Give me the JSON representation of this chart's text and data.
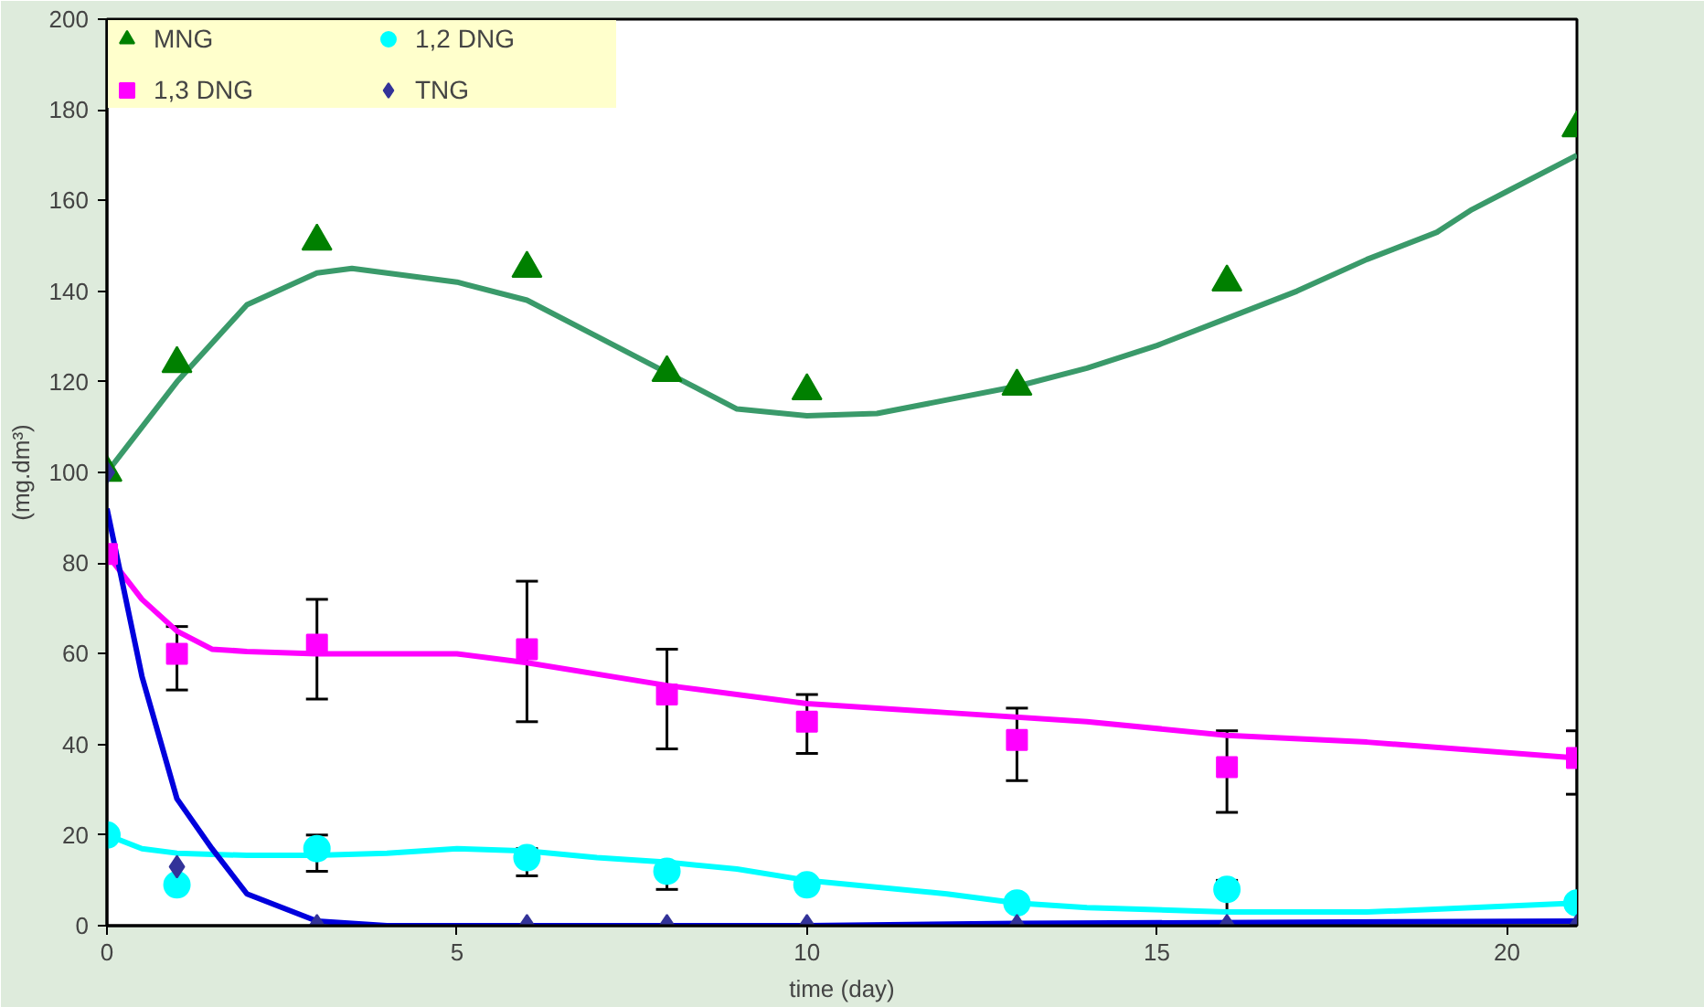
{
  "chart_data": {
    "type": "scatter",
    "xlabel": "time (day)",
    "ylabel": "(mg.dm³)",
    "xlim": [
      0,
      21
    ],
    "ylim": [
      0,
      200
    ],
    "xticks": [
      0,
      5,
      10,
      15,
      20
    ],
    "yticks": [
      0,
      20,
      40,
      60,
      80,
      100,
      120,
      140,
      160,
      180,
      200
    ],
    "grid": false,
    "legend": "top left",
    "series": [
      {
        "name": "MNG",
        "color": "#008000",
        "marker": "triangle",
        "x": [
          0,
          1,
          3,
          6,
          8,
          10,
          13,
          16,
          21
        ],
        "values": [
          100,
          124,
          151,
          145,
          122,
          118,
          119,
          142,
          176
        ]
      },
      {
        "name": "1,3 DNG",
        "color": "#ff00ff",
        "marker": "square",
        "x": [
          0,
          1,
          3,
          6,
          8,
          10,
          13,
          16,
          21
        ],
        "values": [
          82,
          60,
          62,
          61,
          51,
          45,
          41,
          35,
          37
        ],
        "errors": [
          null,
          [
            52,
            66
          ],
          [
            50,
            72
          ],
          [
            45,
            76
          ],
          [
            39,
            61
          ],
          [
            38,
            51
          ],
          [
            32,
            48
          ],
          [
            25,
            43
          ],
          [
            29,
            43
          ]
        ]
      },
      {
        "name": "1,2 DNG",
        "color": "#00ffff",
        "marker": "circle",
        "x": [
          0,
          1,
          3,
          6,
          8,
          10,
          13,
          16,
          21
        ],
        "values": [
          20,
          9,
          17,
          15,
          12,
          9,
          5,
          8,
          5
        ],
        "errors": [
          null,
          null,
          [
            12,
            20
          ],
          [
            11,
            17
          ],
          [
            8,
            12
          ],
          null,
          null,
          [
            3,
            10
          ],
          [
            4,
            6
          ]
        ]
      },
      {
        "name": "TNG",
        "color": "#333399",
        "marker": "diamond",
        "x": [
          0,
          1,
          3,
          6,
          8,
          10,
          13,
          16,
          21
        ],
        "values": [
          100,
          13,
          0,
          0,
          0,
          0,
          0,
          0,
          0
        ]
      },
      {
        "type": "line",
        "color": "#3a9a6a",
        "marker": "none",
        "x": [
          0,
          1,
          2,
          3,
          3.5,
          5,
          6,
          7,
          8,
          9,
          10,
          11,
          12,
          13,
          14,
          15,
          16,
          17,
          18,
          19,
          19.5,
          20,
          21
        ],
        "values": [
          100,
          120,
          137,
          144,
          145,
          142,
          138,
          130,
          122,
          114,
          112.5,
          113,
          116,
          119,
          123,
          128,
          134,
          140,
          147,
          153,
          158,
          162,
          170
        ]
      },
      {
        "type": "line",
        "color": "#ff00ff",
        "marker": "none",
        "x": [
          0,
          0.5,
          1,
          1.5,
          2,
          3,
          5,
          6,
          8,
          10,
          12,
          14,
          16,
          18,
          21
        ],
        "values": [
          82,
          72,
          65,
          61,
          60.5,
          60,
          60,
          58,
          53,
          49,
          47,
          45,
          42,
          40.5,
          37
        ]
      },
      {
        "type": "line",
        "color": "#00ffff",
        "marker": "none",
        "x": [
          0,
          0.5,
          1,
          2,
          3,
          4,
          5,
          6,
          7,
          8,
          9,
          10,
          12,
          13,
          14,
          16,
          18,
          21
        ],
        "values": [
          20,
          17,
          16,
          15.5,
          15.5,
          16,
          17,
          16.5,
          15,
          14,
          12.5,
          10,
          7,
          5,
          4,
          3,
          3,
          5
        ]
      },
      {
        "type": "line",
        "color": "#0000dd",
        "marker": "none",
        "x": [
          0,
          0.5,
          1,
          1.5,
          2,
          3,
          4,
          5,
          6,
          10,
          13,
          21
        ],
        "values": [
          92,
          55,
          28,
          17,
          7,
          1,
          0,
          0,
          0,
          0,
          0.5,
          1
        ]
      }
    ]
  }
}
